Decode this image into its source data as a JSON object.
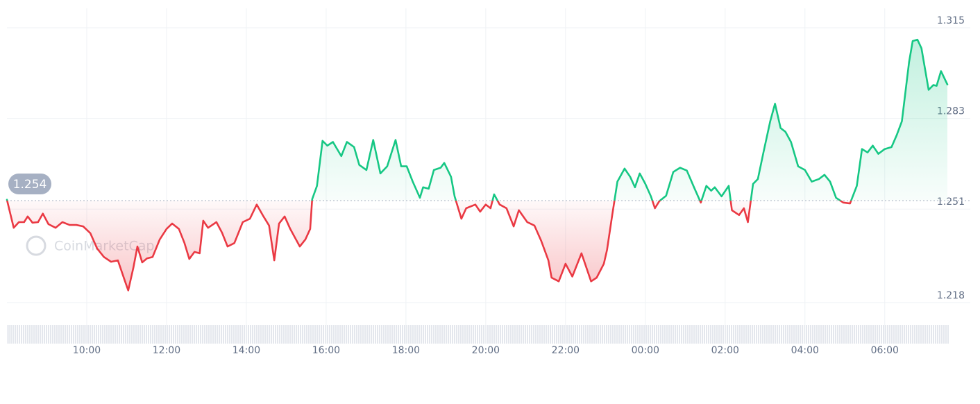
{
  "chart_data": {
    "type": "line",
    "watermark": "CoinMarketCap",
    "baseline": 1.254,
    "colors": {
      "up": "#16c784",
      "down": "#ea3943"
    },
    "grid": true,
    "xlim": [
      8,
      31.57
    ],
    "xticks": [
      {
        "value": 10,
        "label": "10:00"
      },
      {
        "value": 12,
        "label": "12:00"
      },
      {
        "value": 14,
        "label": "14:00"
      },
      {
        "value": 16,
        "label": "16:00"
      },
      {
        "value": 18,
        "label": "18:00"
      },
      {
        "value": 20,
        "label": "20:00"
      },
      {
        "value": 22,
        "label": "22:00"
      },
      {
        "value": 24,
        "label": "00:00"
      },
      {
        "value": 26,
        "label": "02:00"
      },
      {
        "value": 28,
        "label": "04:00"
      },
      {
        "value": 30,
        "label": "06:00"
      }
    ],
    "ylim": [
      1.2121,
      1.3248
    ],
    "yticks": [
      1.218,
      1.251,
      1.283,
      1.315
    ],
    "x": [
      8.0,
      8.17,
      8.3,
      8.43,
      8.52,
      8.64,
      8.78,
      8.9,
      9.04,
      9.22,
      9.39,
      9.57,
      9.74,
      9.91,
      10.09,
      10.26,
      10.43,
      10.61,
      10.78,
      10.96,
      11.04,
      11.17,
      11.27,
      11.39,
      11.51,
      11.65,
      11.83,
      12.0,
      12.14,
      12.31,
      12.45,
      12.57,
      12.7,
      12.83,
      12.92,
      13.04,
      13.25,
      13.39,
      13.53,
      13.7,
      13.91,
      14.09,
      14.26,
      14.43,
      14.57,
      14.7,
      14.82,
      14.96,
      15.1,
      15.34,
      15.48,
      15.6,
      15.65,
      15.77,
      15.91,
      16.03,
      16.17,
      16.38,
      16.52,
      16.7,
      16.83,
      17.01,
      17.18,
      17.36,
      17.53,
      17.74,
      17.88,
      18.02,
      18.17,
      18.35,
      18.43,
      18.57,
      18.7,
      18.87,
      18.96,
      19.13,
      19.22,
      19.39,
      19.51,
      19.74,
      19.86,
      20.0,
      20.12,
      20.21,
      20.35,
      20.52,
      20.7,
      20.83,
      21.04,
      21.22,
      21.39,
      21.57,
      21.65,
      21.83,
      22.0,
      22.17,
      22.4,
      22.64,
      22.78,
      22.96,
      23.04,
      23.17,
      23.3,
      23.48,
      23.62,
      23.74,
      23.86,
      24.0,
      24.14,
      24.24,
      24.35,
      24.52,
      24.7,
      24.87,
      25.04,
      25.22,
      25.39,
      25.53,
      25.65,
      25.74,
      25.91,
      26.09,
      26.17,
      26.35,
      26.47,
      26.57,
      26.7,
      26.82,
      26.96,
      27.13,
      27.25,
      27.39,
      27.51,
      27.65,
      27.83,
      28.0,
      28.17,
      28.35,
      28.49,
      28.63,
      28.78,
      28.96,
      29.13,
      29.3,
      29.43,
      29.57,
      29.7,
      29.84,
      30.0,
      30.17,
      30.3,
      30.43,
      30.61,
      30.7,
      30.82,
      30.92,
      31.1,
      31.22,
      31.3,
      31.41,
      31.57
    ],
    "values": [
      1.2543,
      1.2444,
      1.2464,
      1.2464,
      1.2484,
      1.2462,
      1.2464,
      1.2494,
      1.2457,
      1.2444,
      1.2464,
      1.2454,
      1.2454,
      1.2449,
      1.2425,
      1.2371,
      1.2341,
      1.2324,
      1.2329,
      1.2255,
      1.2223,
      1.2304,
      1.2378,
      1.2322,
      1.2336,
      1.2341,
      1.2403,
      1.244,
      1.2459,
      1.244,
      1.239,
      1.2334,
      1.2359,
      1.2354,
      1.2469,
      1.2444,
      1.2464,
      1.2427,
      1.2378,
      1.239,
      1.2464,
      1.2476,
      1.2526,
      1.2484,
      1.2452,
      1.2329,
      1.2459,
      1.2484,
      1.244,
      1.2378,
      1.2403,
      1.244,
      1.2545,
      1.2592,
      1.2751,
      1.2734,
      1.2747,
      1.2697,
      1.2747,
      1.2729,
      1.2666,
      1.2648,
      1.2754,
      1.2636,
      1.2661,
      1.2754,
      1.2661,
      1.2661,
      1.2607,
      1.255,
      1.2587,
      1.2582,
      1.2648,
      1.2656,
      1.2673,
      1.2624,
      1.2555,
      1.2476,
      1.2513,
      1.2526,
      1.2501,
      1.2526,
      1.2513,
      1.2562,
      1.2526,
      1.2513,
      1.2449,
      1.2506,
      1.2464,
      1.2452,
      1.2398,
      1.2329,
      1.2268,
      1.2255,
      1.2317,
      1.2272,
      1.2354,
      1.2255,
      1.2268,
      1.2317,
      1.2366,
      1.2489,
      1.2607,
      1.2653,
      1.2624,
      1.2587,
      1.2636,
      1.2599,
      1.2555,
      1.2513,
      1.2538,
      1.2557,
      1.2641,
      1.2656,
      1.2646,
      1.2587,
      1.2533,
      1.2592,
      1.2575,
      1.2587,
      1.2555,
      1.2592,
      1.2506,
      1.2489,
      1.2513,
      1.2464,
      1.2599,
      1.2616,
      1.271,
      1.282,
      1.2882,
      1.2796,
      1.2783,
      1.2747,
      1.2661,
      1.2648,
      1.2607,
      1.2616,
      1.2631,
      1.2607,
      1.255,
      1.2533,
      1.253,
      1.2592,
      1.2722,
      1.271,
      1.2734,
      1.2705,
      1.2722,
      1.2729,
      1.2771,
      1.282,
      1.3029,
      1.3103,
      1.3108,
      1.3078,
      1.2931,
      1.2948,
      1.2945,
      1.2997,
      1.295
    ]
  }
}
